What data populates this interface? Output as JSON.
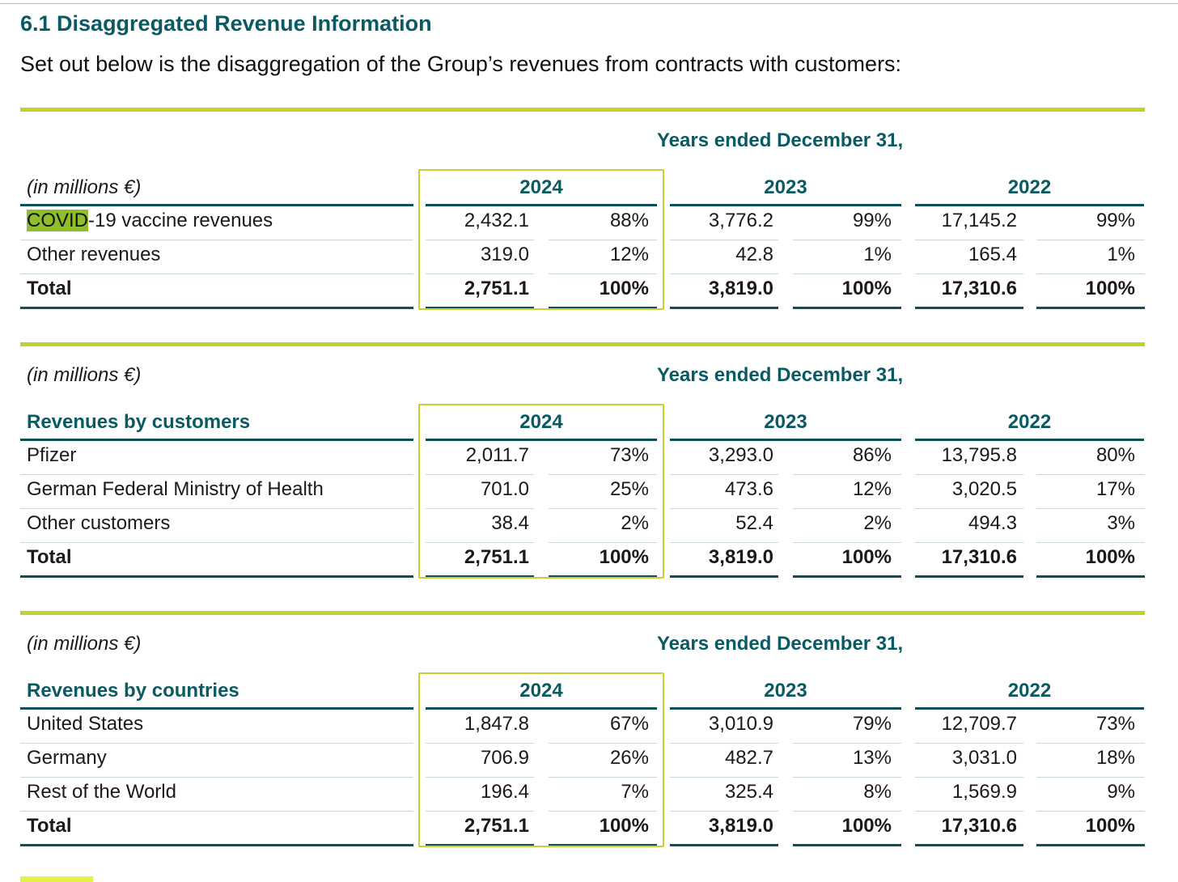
{
  "heading": "6.1 Disaggregated Revenue Information",
  "intro": "Set out below is the disaggregation of the Group’s revenues from contracts with customers:",
  "years_header": "Years ended December 31,",
  "unit_label": "(in millions €)",
  "years": [
    "2024",
    "2023",
    "2022"
  ],
  "tables": [
    {
      "row_header": "",
      "rows": [
        {
          "label_highlight": "COVID",
          "label": "-19 vaccine revenues",
          "values": [
            "2,432.1",
            "88%",
            "3,776.2",
            "99%",
            "17,145.2",
            "99%"
          ]
        },
        {
          "label": "Other revenues",
          "values": [
            "319.0",
            "12%",
            "42.8",
            "1%",
            "165.4",
            "1%"
          ]
        },
        {
          "label": "Total",
          "values": [
            "2,751.1",
            "100%",
            "3,819.0",
            "100%",
            "17,310.6",
            "100%"
          ]
        }
      ]
    },
    {
      "row_header": "Revenues by customers",
      "rows": [
        {
          "label": "Pfizer",
          "values": [
            "2,011.7",
            "73%",
            "3,293.0",
            "86%",
            "13,795.8",
            "80%"
          ]
        },
        {
          "label": "German Federal Ministry of Health",
          "values": [
            "701.0",
            "25%",
            "473.6",
            "12%",
            "3,020.5",
            "17%"
          ]
        },
        {
          "label": "Other customers",
          "values": [
            "38.4",
            "2%",
            "52.4",
            "2%",
            "494.3",
            "3%"
          ]
        },
        {
          "label": "Total",
          "values": [
            "2,751.1",
            "100%",
            "3,819.0",
            "100%",
            "17,310.6",
            "100%"
          ]
        }
      ]
    },
    {
      "row_header": "Revenues by countries",
      "rows": [
        {
          "label": "United States",
          "values": [
            "1,847.8",
            "67%",
            "3,010.9",
            "79%",
            "12,709.7",
            "73%"
          ]
        },
        {
          "label": "Germany",
          "values": [
            "706.9",
            "26%",
            "482.7",
            "13%",
            "3,031.0",
            "18%"
          ]
        },
        {
          "label": "Rest of the World",
          "values": [
            "196.4",
            "7%",
            "325.4",
            "8%",
            "1,569.9",
            "9%"
          ]
        },
        {
          "label": "Total",
          "values": [
            "2,751.1",
            "100%",
            "3,819.0",
            "100%",
            "17,310.6",
            "100%"
          ]
        }
      ]
    }
  ],
  "colors": {
    "accent_teal": "#0a5a63",
    "accent_lime": "#c3d12f",
    "highlight": "#8ebf2a"
  }
}
